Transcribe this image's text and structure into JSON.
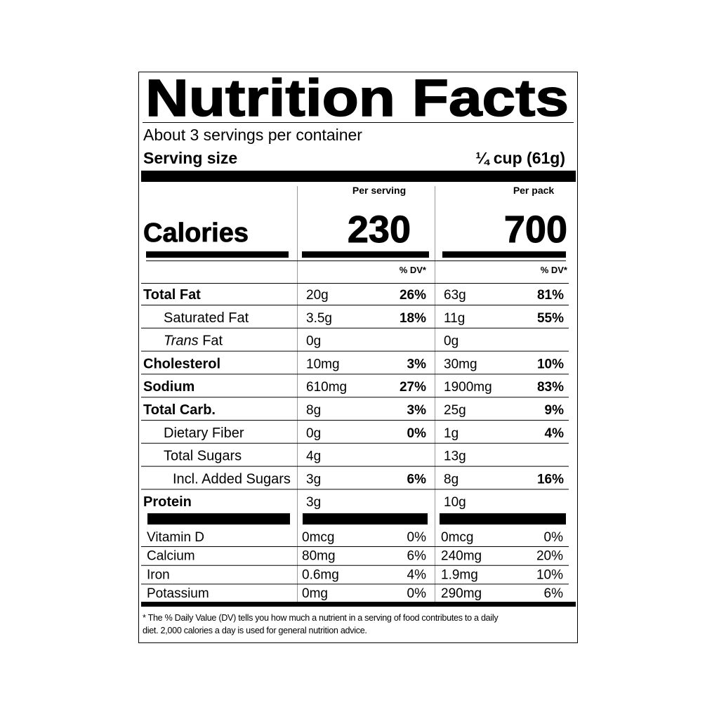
{
  "title": "Nutrition Facts",
  "servings": "About 3 servings per container",
  "serving_size_label": "Serving size",
  "serving_size": "¼ cup (61g)",
  "calories_label": "Calories",
  "columns": [
    {
      "header": "Per serving",
      "calories": "230",
      "dv_label": "% DV*"
    },
    {
      "header": "Per pack",
      "calories": "700",
      "dv_label": "% DV*"
    }
  ],
  "nutrients": [
    {
      "name": "Total Fat",
      "level": 0,
      "serving": {
        "amount": "20g",
        "dv": "26%"
      },
      "pack": {
        "amount": "63g",
        "dv": "81%"
      }
    },
    {
      "name": "Saturated Fat",
      "level": 1,
      "serving": {
        "amount": "3.5g",
        "dv": "18%"
      },
      "pack": {
        "amount": "11g",
        "dv": "55%"
      }
    },
    {
      "name_italic": "Trans",
      "name": " Fat",
      "level": 1,
      "serving": {
        "amount": "0g"
      },
      "pack": {
        "amount": "0g"
      }
    },
    {
      "name": "Cholesterol",
      "level": 0,
      "serving": {
        "amount": "10mg",
        "dv": "3%"
      },
      "pack": {
        "amount": "30mg",
        "dv": "10%"
      }
    },
    {
      "name": "Sodium",
      "level": 0,
      "serving": {
        "amount": "610mg",
        "dv": "27%"
      },
      "pack": {
        "amount": "1900mg",
        "dv": "83%"
      }
    },
    {
      "name": "Total Carb.",
      "level": 0,
      "serving": {
        "amount": "8g",
        "dv": "3%"
      },
      "pack": {
        "amount": "25g",
        "dv": "9%"
      }
    },
    {
      "name": "Dietary Fiber",
      "level": 1,
      "serving": {
        "amount": "0g",
        "dv": "0%"
      },
      "pack": {
        "amount": "1g",
        "dv": "4%"
      }
    },
    {
      "name": "Total Sugars",
      "level": 1,
      "serving": {
        "amount": "4g"
      },
      "pack": {
        "amount": "13g"
      }
    },
    {
      "name": "Incl. Added Sugars",
      "level": 2,
      "serving": {
        "amount": "3g",
        "dv": "6%"
      },
      "pack": {
        "amount": "8g",
        "dv": "16%"
      }
    },
    {
      "name": "Protein",
      "level": 0,
      "serving": {
        "amount": "3g"
      },
      "pack": {
        "amount": "10g"
      }
    }
  ],
  "vitamins": [
    {
      "name": "Vitamin D",
      "serving": {
        "amount": "0mcg",
        "dv": "0%"
      },
      "pack": {
        "amount": "0mcg",
        "dv": "0%"
      }
    },
    {
      "name": "Calcium",
      "serving": {
        "amount": "80mg",
        "dv": "6%"
      },
      "pack": {
        "amount": "240mg",
        "dv": "20%"
      }
    },
    {
      "name": "Iron",
      "serving": {
        "amount": "0.6mg",
        "dv": "4%"
      },
      "pack": {
        "amount": "1.9mg",
        "dv": "10%"
      }
    },
    {
      "name": "Potassium",
      "serving": {
        "amount": "0mg",
        "dv": "0%"
      },
      "pack": {
        "amount": "290mg",
        "dv": "6%"
      }
    }
  ],
  "footnote": [
    "* The % Daily Value (DV) tells you how much a nutrient in a serving of food contributes to a daily",
    "diet. 2,000 calories a day is used for general nutrition advice."
  ]
}
